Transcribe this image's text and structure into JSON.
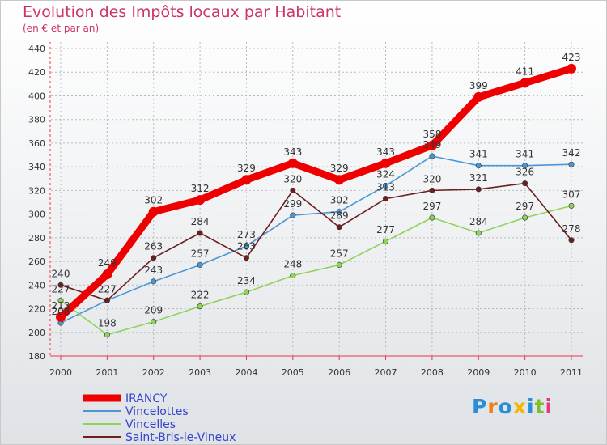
{
  "header": {
    "title": "Evolution des Impôts locaux par Habitant",
    "subtitle": "(en € et par an)"
  },
  "logo": {
    "letters": [
      "P",
      "r",
      "o",
      "x",
      "i",
      "t",
      "i"
    ],
    "colors": [
      "#2a8ed6",
      "#ef7d14",
      "#2a8ed6",
      "#f2b705",
      "#2a8ed6",
      "#7bbf2a",
      "#e03a85"
    ]
  },
  "chart_data": {
    "type": "line",
    "title": "Evolution des Impôts locaux par Habitant",
    "subtitle": "(en € et par an)",
    "xlabel": "",
    "ylabel": "",
    "categories": [
      "2000",
      "2001",
      "2002",
      "2003",
      "2004",
      "2005",
      "2006",
      "2007",
      "2008",
      "2009",
      "2010",
      "2011"
    ],
    "ylim": [
      180,
      440
    ],
    "yticks": [
      180,
      200,
      220,
      240,
      260,
      280,
      300,
      320,
      340,
      360,
      380,
      400,
      420,
      440
    ],
    "grid": true,
    "legend_position": "bottom-left",
    "series": [
      {
        "name": "IRANCY",
        "color": "#ee0000",
        "values": [
          213,
          249,
          302,
          312,
          329,
          343,
          329,
          343,
          358,
          399,
          411,
          423
        ]
      },
      {
        "name": "Vincelottes",
        "color": "#4d96d6",
        "values": [
          208,
          227,
          243,
          257,
          273,
          299,
          302,
          324,
          349,
          341,
          341,
          342
        ]
      },
      {
        "name": "Vincelles",
        "color": "#8fd45a",
        "values": [
          227,
          198,
          209,
          222,
          234,
          248,
          257,
          277,
          297,
          284,
          297,
          307
        ]
      },
      {
        "name": "Saint-Bris-le-Vineux",
        "color": "#6e1e1e",
        "values": [
          240,
          227,
          263,
          284,
          263,
          320,
          289,
          313,
          320,
          321,
          326,
          278
        ]
      }
    ]
  }
}
